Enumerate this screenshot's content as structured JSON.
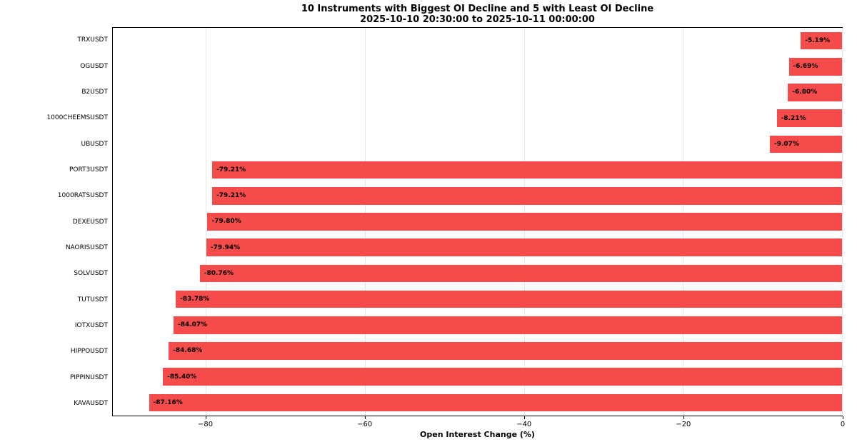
{
  "chart_data": {
    "type": "bar",
    "orientation": "horizontal",
    "title": "10 Instruments with Biggest OI Decline and 5 with Least OI Decline",
    "subtitle": "2025-10-10 20:30:00 to 2025-10-11 00:00:00",
    "xlabel": "Open Interest Change (%)",
    "ylabel": "",
    "xlim": [
      -91.7,
      0
    ],
    "xticks": [
      -80,
      -60,
      -40,
      -20,
      0
    ],
    "xtick_labels": [
      "−80",
      "−60",
      "−40",
      "−20",
      "0"
    ],
    "grid": true,
    "legend": null,
    "bar_color": "#f64b4b",
    "categories": [
      "TRXUSDT",
      "OGUSDT",
      "B2USDT",
      "1000CHEEMSUSDT",
      "UBUSDT",
      "PORT3USDT",
      "1000RATSUSDT",
      "DEXEUSDT",
      "NAORISUSDT",
      "SOLVUSDT",
      "TUTUSDT",
      "IOTXUSDT",
      "HIPPOUSDT",
      "PIPPINUSDT",
      "KAVAUSDT"
    ],
    "values": [
      -5.19,
      -6.69,
      -6.8,
      -8.21,
      -9.07,
      -79.21,
      -79.21,
      -79.8,
      -79.94,
      -80.76,
      -83.78,
      -84.07,
      -84.68,
      -85.4,
      -87.16
    ],
    "labels": [
      "-5.19%",
      "-6.69%",
      "-6.80%",
      "-8.21%",
      "-9.07%",
      "-79.21%",
      "-79.21%",
      "-79.80%",
      "-79.94%",
      "-80.76%",
      "-83.78%",
      "-84.07%",
      "-84.68%",
      "-85.40%",
      "-87.16%"
    ]
  }
}
